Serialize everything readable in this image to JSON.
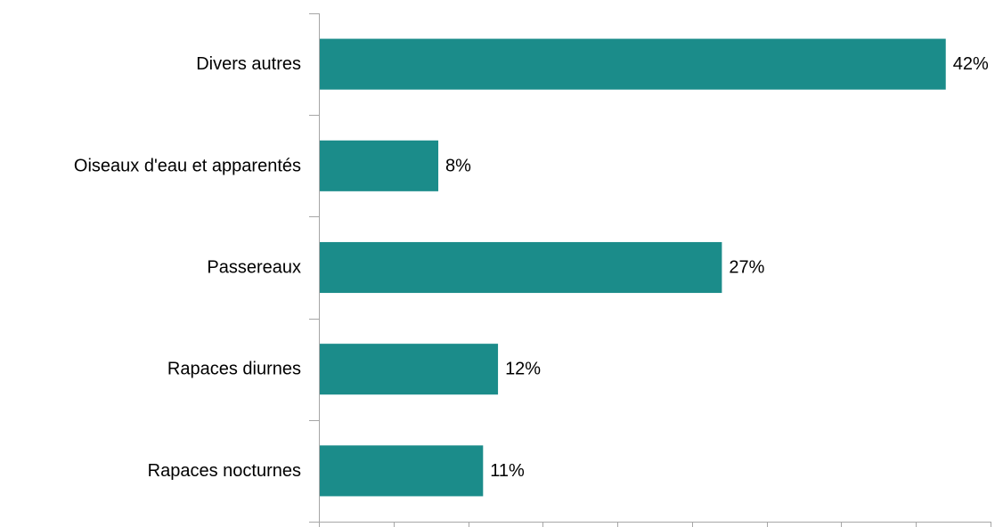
{
  "chart_data": {
    "type": "bar",
    "orientation": "horizontal",
    "categories": [
      "Divers autres",
      "Oiseaux d'eau et apparentés",
      "Passereaux",
      "Rapaces diurnes",
      "Rapaces nocturnes"
    ],
    "values": [
      42,
      8,
      27,
      12,
      11
    ],
    "value_labels": [
      "42%",
      "8%",
      "27%",
      "12%",
      "11%"
    ],
    "unit": "%",
    "xlim": [
      0,
      45
    ],
    "x_ticks": [
      0,
      5,
      10,
      15,
      20,
      25,
      30,
      35,
      40,
      45
    ],
    "x_tick_labels_shown": false,
    "grid": false,
    "legend": "none",
    "title": "",
    "xlabel": "",
    "ylabel": ""
  },
  "colors": {
    "bar": "#1b8c8a",
    "axis": "#a6a6a6",
    "text": "#000000"
  }
}
